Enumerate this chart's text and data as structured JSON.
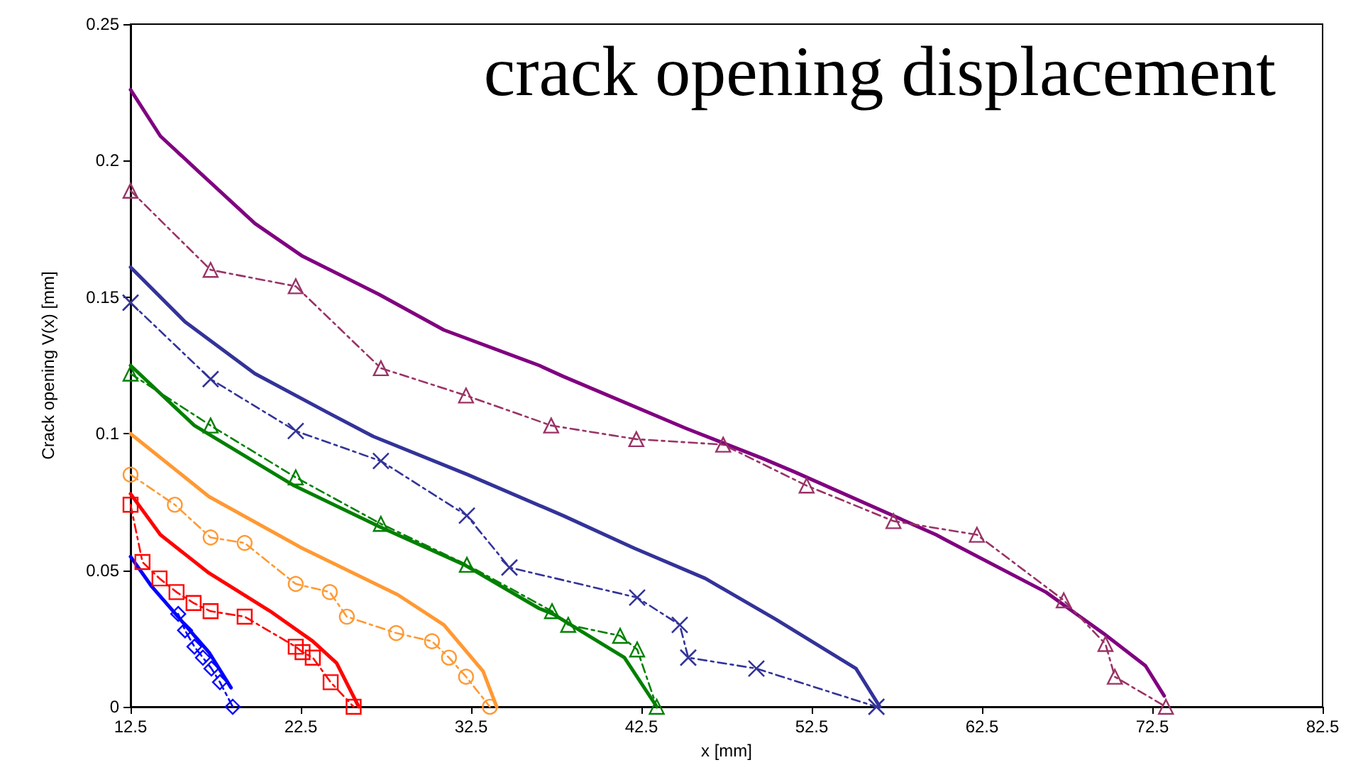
{
  "chart_data": {
    "type": "line",
    "title": "crack opening displacement",
    "xlabel": "x [mm]",
    "ylabel": "Crack opening V(x) [mm]",
    "xlim": [
      12.5,
      82.5
    ],
    "xticks": [
      12.5,
      22.5,
      32.5,
      42.5,
      52.5,
      62.5,
      72.5,
      82.5
    ],
    "ylim": [
      0,
      0.25
    ],
    "yticks": [
      0,
      0.05,
      0.1,
      0.15,
      0.2,
      0.25
    ],
    "grid": false,
    "series": [
      {
        "color": "#800080",
        "marker": "none",
        "line_style": "solid",
        "x": [
          12.5,
          14.25,
          16.5,
          19.8,
          22.6,
          27.1,
          30.9,
          36.5,
          37.9,
          45.1,
          49.6,
          51.5,
          59.8,
          60.4,
          66.25,
          69.6,
          72.1,
          73.2
        ],
        "values": [
          0.226,
          0.209,
          0.196,
          0.177,
          0.165,
          0.151,
          0.138,
          0.125,
          0.121,
          0.102,
          0.091,
          0.086,
          0.063,
          0.061,
          0.042,
          0.027,
          0.015,
          0.004
        ]
      },
      {
        "color": "#993366",
        "marker": "triangle",
        "line_style": "dashed",
        "x": [
          12.5,
          17.2,
          22.2,
          27.2,
          32.2,
          37.2,
          42.2,
          47.3,
          52.2,
          57.3,
          62.2,
          67.3,
          69.75,
          70.3,
          73.3
        ],
        "values": [
          0.189,
          0.16,
          0.154,
          0.124,
          0.114,
          0.103,
          0.098,
          0.096,
          0.081,
          0.068,
          0.063,
          0.039,
          0.023,
          0.011,
          0
        ]
      },
      {
        "color": "#333399",
        "marker": "none",
        "line_style": "solid",
        "x": [
          12.5,
          15.7,
          19.8,
          24.0,
          26.75,
          32.3,
          37.9,
          42.1,
          46.25,
          50.4,
          55.1,
          56.5
        ],
        "values": [
          0.161,
          0.141,
          0.122,
          0.108,
          0.099,
          0.085,
          0.07,
          0.058,
          0.047,
          0.032,
          0.014,
          0
        ]
      },
      {
        "color": "#333399",
        "marker": "cross",
        "line_style": "dashed",
        "x": [
          12.5,
          17.2,
          22.2,
          27.2,
          32.25,
          34.75,
          42.25,
          44.75,
          45.25,
          49.25,
          56.3
        ],
        "values": [
          0.148,
          0.12,
          0.101,
          0.09,
          0.07,
          0.051,
          0.04,
          0.03,
          0.018,
          0.014,
          0
        ]
      },
      {
        "color": "#008000",
        "marker": "none",
        "line_style": "solid",
        "x": [
          12.5,
          16.25,
          22.1,
          27.1,
          32.1,
          36.5,
          37.3,
          41.5,
          43.4
        ],
        "values": [
          0.125,
          0.103,
          0.081,
          0.066,
          0.052,
          0.036,
          0.034,
          0.018,
          0
        ]
      },
      {
        "color": "#008000",
        "marker": "triangle",
        "line_style": "dashed",
        "x": [
          12.5,
          17.2,
          22.2,
          27.2,
          32.25,
          37.25,
          38.2,
          41.25,
          42.25,
          43.4
        ],
        "values": [
          0.122,
          0.103,
          0.084,
          0.067,
          0.052,
          0.035,
          0.03,
          0.026,
          0.021,
          0
        ]
      },
      {
        "color": "#ff9933",
        "marker": "none",
        "line_style": "solid",
        "x": [
          12.5,
          17.1,
          22.6,
          28.2,
          30.9,
          33.2,
          34.0
        ],
        "values": [
          0.1,
          0.077,
          0.058,
          0.041,
          0.03,
          0.013,
          0
        ]
      },
      {
        "color": "#ff9933",
        "marker": "circle",
        "line_style": "dashed",
        "x": [
          12.5,
          15.1,
          17.2,
          19.2,
          22.2,
          24.2,
          25.2,
          28.1,
          30.2,
          31.2,
          32.2,
          33.6
        ],
        "values": [
          0.085,
          0.074,
          0.062,
          0.06,
          0.045,
          0.042,
          0.033,
          0.027,
          0.024,
          0.018,
          0.011,
          0
        ]
      },
      {
        "color": "#ff0000",
        "marker": "none",
        "line_style": "solid",
        "x": [
          12.5,
          14.25,
          17.1,
          20.7,
          23.2,
          24.6,
          25.9
        ],
        "values": [
          0.078,
          0.063,
          0.049,
          0.035,
          0.024,
          0.016,
          0
        ]
      },
      {
        "color": "#ff0000",
        "marker": "square",
        "line_style": "dashed",
        "x": [
          12.5,
          13.2,
          14.2,
          15.2,
          16.2,
          17.2,
          19.2,
          22.2,
          22.6,
          23.2,
          24.25,
          25.6
        ],
        "values": [
          0.074,
          0.053,
          0.047,
          0.042,
          0.038,
          0.035,
          0.033,
          0.022,
          0.02,
          0.018,
          0.009,
          0
        ]
      },
      {
        "color": "#0000ff",
        "marker": "none",
        "line_style": "solid",
        "x": [
          12.5,
          13.75,
          15.7,
          17.1,
          18.4
        ],
        "values": [
          0.055,
          0.044,
          0.03,
          0.02,
          0.007
        ]
      },
      {
        "color": "#0000ff",
        "marker": "diamond",
        "line_style": "dashed",
        "x": [
          15.3,
          15.7,
          16.25,
          16.75,
          17.25,
          17.75,
          18.5
        ],
        "values": [
          0.034,
          0.028,
          0.022,
          0.018,
          0.014,
          0.009,
          0
        ]
      }
    ]
  }
}
